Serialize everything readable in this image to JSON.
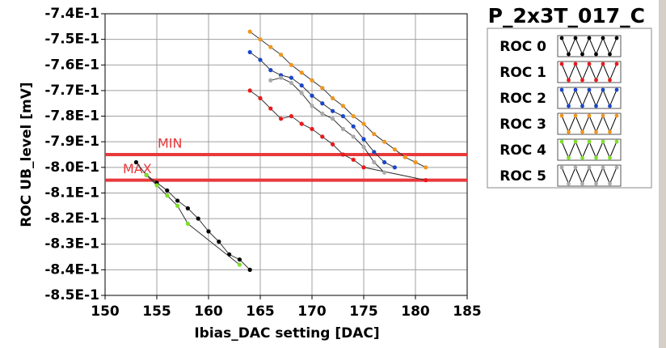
{
  "chart_data": {
    "type": "line",
    "title": "P_2x3T_017_C",
    "x_label": "Ibias_DAC setting [DAC]",
    "y_label": "ROC UB_level [mV]",
    "xlim": [
      150,
      185
    ],
    "xticks": [
      150,
      155,
      160,
      165,
      170,
      175,
      180,
      185
    ],
    "ylim": [
      -0.85,
      -0.74
    ],
    "yticks": [
      {
        "value": -0.74,
        "label": "-7.4E-1"
      },
      {
        "value": -0.75,
        "label": "-7.5E-1"
      },
      {
        "value": -0.76,
        "label": "-7.6E-1"
      },
      {
        "value": -0.77,
        "label": "-7.7E-1"
      },
      {
        "value": -0.78,
        "label": "-7.8E-1"
      },
      {
        "value": -0.79,
        "label": "-7.9E-1"
      },
      {
        "value": -0.8,
        "label": "-8.0E-1"
      },
      {
        "value": -0.81,
        "label": "-8.1E-1"
      },
      {
        "value": -0.82,
        "label": "-8.2E-1"
      },
      {
        "value": -0.83,
        "label": "-8.3E-1"
      },
      {
        "value": -0.84,
        "label": "-8.4E-1"
      },
      {
        "value": -0.85,
        "label": "-8.5E-1"
      }
    ],
    "grid": true,
    "thresholds": [
      {
        "label": "MIN",
        "value": -0.795,
        "color": "#e8393b"
      },
      {
        "label": "MAX",
        "value": -0.805,
        "color": "#e8393b"
      }
    ],
    "series": [
      {
        "name": "ROC 0",
        "color": "#000000",
        "x": [
          153,
          154,
          155,
          156,
          157,
          158,
          159,
          160,
          161,
          162,
          163,
          164
        ],
        "values": [
          -0.798,
          -0.803,
          -0.806,
          -0.809,
          -0.813,
          -0.816,
          -0.82,
          -0.825,
          -0.829,
          -0.834,
          -0.836,
          -0.84
        ]
      },
      {
        "name": "ROC 1",
        "color": "#e8191b",
        "x": [
          164,
          165,
          166,
          167,
          168,
          169,
          170,
          171,
          172,
          173,
          174,
          175,
          181
        ],
        "values": [
          -0.77,
          -0.773,
          -0.777,
          -0.781,
          -0.78,
          -0.783,
          -0.785,
          -0.788,
          -0.791,
          -0.795,
          -0.797,
          -0.8,
          -0.805
        ]
      },
      {
        "name": "ROC 2",
        "color": "#1a46c8",
        "x": [
          164,
          165,
          166,
          167,
          168,
          169,
          170,
          171,
          172,
          173,
          174,
          175,
          176,
          177,
          178
        ],
        "values": [
          -0.755,
          -0.758,
          -0.762,
          -0.764,
          -0.765,
          -0.768,
          -0.772,
          -0.775,
          -0.778,
          -0.78,
          -0.784,
          -0.789,
          -0.794,
          -0.798,
          -0.8
        ]
      },
      {
        "name": "ROC 3",
        "color": "#f0961e",
        "x": [
          164,
          165,
          166,
          167,
          168,
          169,
          170,
          171,
          172,
          173,
          174,
          175,
          176,
          177,
          178,
          179,
          180,
          181
        ],
        "values": [
          -0.747,
          -0.75,
          -0.753,
          -0.756,
          -0.76,
          -0.763,
          -0.766,
          -0.769,
          -0.773,
          -0.776,
          -0.78,
          -0.783,
          -0.787,
          -0.79,
          -0.793,
          -0.796,
          -0.798,
          -0.8
        ]
      },
      {
        "name": "ROC 4",
        "color": "#7ee02a",
        "x": [
          154,
          155,
          156,
          157,
          158,
          163
        ],
        "values": [
          -0.803,
          -0.807,
          -0.811,
          -0.815,
          -0.822,
          -0.838
        ]
      },
      {
        "name": "ROC 5",
        "color": "#aaaaaa",
        "x": [
          166,
          167,
          168,
          169,
          170,
          171,
          172,
          173,
          174,
          175,
          176,
          177
        ],
        "values": [
          -0.766,
          -0.765,
          -0.767,
          -0.771,
          -0.776,
          -0.779,
          -0.781,
          -0.785,
          -0.788,
          -0.792,
          -0.798,
          -0.802
        ]
      }
    ]
  }
}
